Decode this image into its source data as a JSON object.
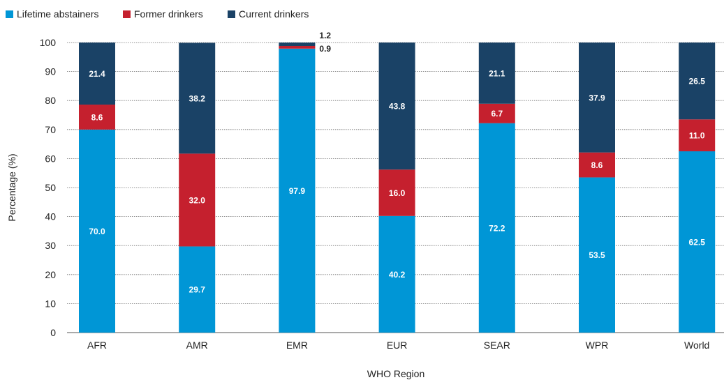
{
  "chart_data": {
    "type": "bar",
    "stacked": true,
    "categories": [
      "AFR",
      "AMR",
      "EMR",
      "EUR",
      "SEAR",
      "WPR",
      "World"
    ],
    "series": [
      {
        "name": "Lifetime abstainers",
        "color": "#0096d6",
        "values": [
          70.0,
          29.7,
          97.9,
          40.2,
          72.2,
          53.5,
          62.5
        ],
        "labels": [
          "70.0",
          "29.7",
          "97.9",
          "40.2",
          "72.2",
          "53.5",
          "62.5"
        ]
      },
      {
        "name": "Former drinkers",
        "color": "#c5202e",
        "values": [
          8.6,
          32.0,
          0.9,
          16.0,
          6.7,
          8.6,
          11.0
        ],
        "labels": [
          "8.6",
          "32.0",
          "0.9",
          "16.0",
          "6.7",
          "8.6",
          "11.0"
        ]
      },
      {
        "name": "Current drinkers",
        "color": "#1a4266",
        "values": [
          21.4,
          38.2,
          1.2,
          43.8,
          21.1,
          37.9,
          26.5
        ],
        "labels": [
          "21.4",
          "38.2",
          "1.2",
          "43.8",
          "21.1",
          "37.9",
          "26.5"
        ]
      }
    ],
    "xlabel": "WHO Region",
    "ylabel": "Percentage (%)",
    "ylim": [
      0,
      100
    ],
    "yticks": [
      "0",
      "10",
      "20",
      "30",
      "40",
      "50",
      "60",
      "70",
      "80",
      "90",
      "100"
    ],
    "grid": true,
    "legend": "top-left"
  }
}
